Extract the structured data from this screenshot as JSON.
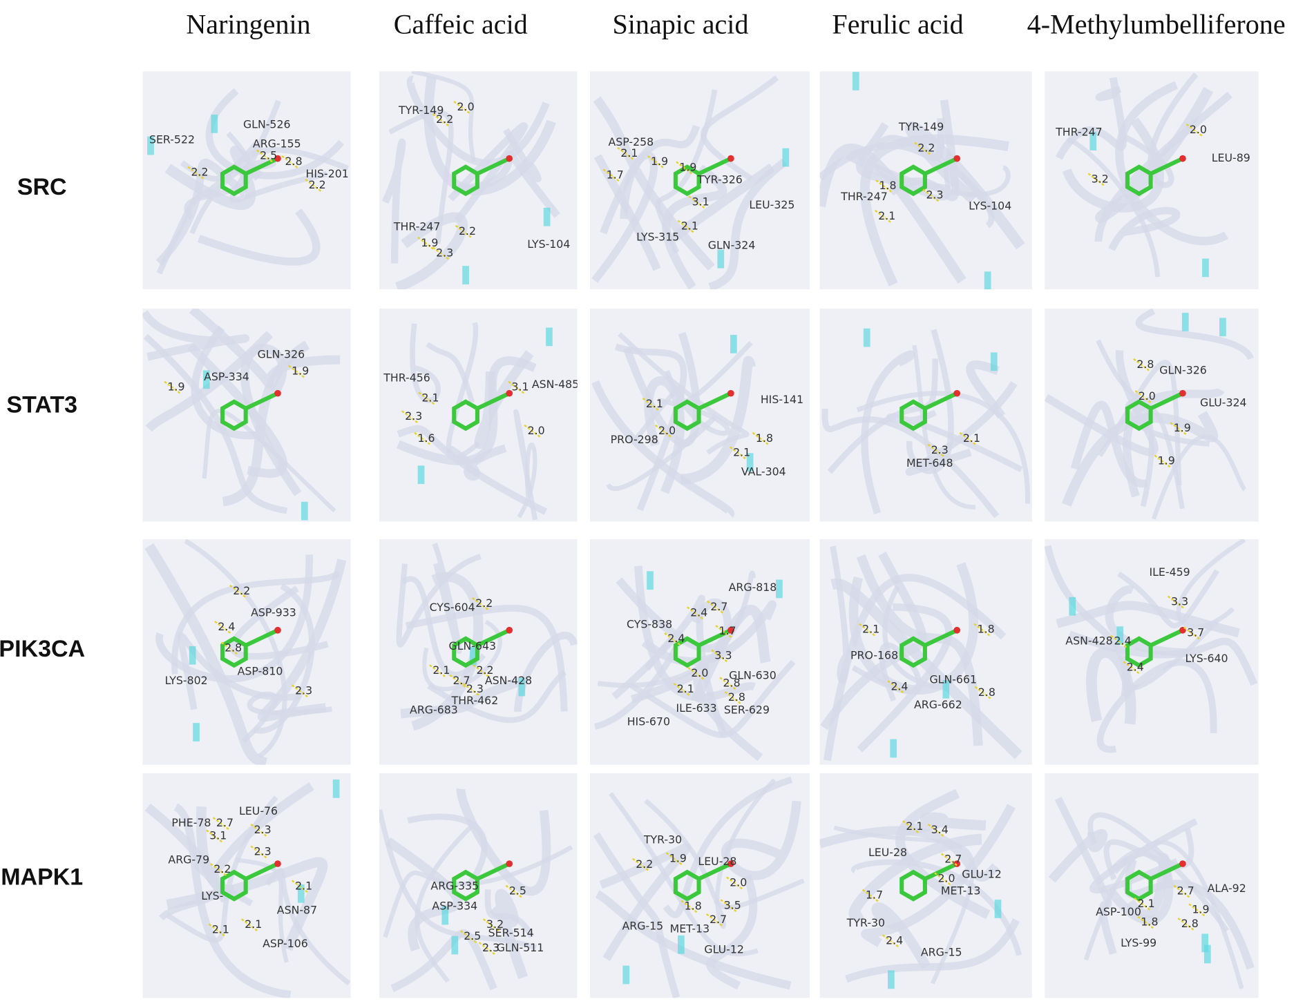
{
  "columns": [
    "Naringenin",
    "Caffeic acid",
    "Sinapic acid",
    "Ferulic acid",
    "4-Methylumbelliferone"
  ],
  "rows": [
    {
      "label": "SRC",
      "panels": [
        {
          "labels": [
            "SER-522",
            "GLN-526",
            "ARG-155",
            "2.5",
            "2.8",
            "HIS-201",
            "2.2",
            "2.2"
          ]
        },
        {
          "labels": [
            "TYR-149",
            "2.0",
            "2.2",
            "THR-247",
            "2.2",
            "1.9",
            "2.3",
            "LYS-104"
          ]
        },
        {
          "labels": [
            "ASP-258",
            "2.1",
            "1.9",
            "1.7",
            "1.9",
            "TYR-326",
            "3.1",
            "LEU-325",
            "2.1",
            "LYS-315",
            "GLN-324"
          ]
        },
        {
          "labels": [
            "TYR-149",
            "2.2",
            "1.8",
            "THR-247",
            "2.3",
            "LYS-104",
            "2.1"
          ]
        },
        {
          "labels": [
            "THR-247",
            "2.0",
            "LEU-89",
            "3.2"
          ]
        }
      ]
    },
    {
      "label": "STAT3",
      "panels": [
        {
          "labels": [
            "GLN-326",
            "ASP-334",
            "1.9",
            "1.9"
          ]
        },
        {
          "labels": [
            "THR-456",
            "ASN-485",
            "3.1",
            "2.1",
            "2.3",
            "1.6",
            "2.0"
          ]
        },
        {
          "labels": [
            "HIS-141",
            "2.1",
            "2.0",
            "PRO-298",
            "1.8",
            "2.1",
            "VAL-304"
          ]
        },
        {
          "labels": [
            "2.1",
            "2.3",
            "MET-648"
          ]
        },
        {
          "labels": [
            "2.8",
            "GLN-326",
            "2.0",
            "GLU-324",
            "1.9",
            "1.9"
          ]
        }
      ]
    },
    {
      "label": "PIK3CA",
      "panels": [
        {
          "labels": [
            "2.2",
            "ASP-933",
            "2.4",
            "2.8",
            "ASP-810",
            "LYS-802",
            "2.3"
          ]
        },
        {
          "labels": [
            "CYS-604",
            "2.2",
            "GLN-643",
            "2.1",
            "2.7",
            "2.2",
            "ASN-428",
            "2.3",
            "THR-462",
            "ARG-683"
          ]
        },
        {
          "labels": [
            "ARG-818",
            "2.4",
            "2.7",
            "CYS-838",
            "1.7",
            "2.4",
            "3.3",
            "2.0",
            "GLN-630",
            "2.1",
            "2.8",
            "2.8",
            "ILE-633",
            "SER-629",
            "HIS-670"
          ]
        },
        {
          "labels": [
            "2.1",
            "1.8",
            "PRO-168",
            "GLN-661",
            "2.4",
            "2.8",
            "ARG-662"
          ]
        },
        {
          "labels": [
            "ILE-459",
            "3.3",
            "ASN-428",
            "2.4",
            "3.7",
            "LYS-640",
            "2.4"
          ]
        }
      ]
    },
    {
      "label": "MAPK1",
      "panels": [
        {
          "labels": [
            "LEU-76",
            "PHE-78",
            "2.7",
            "2.3",
            "3.1",
            "2.3",
            "ARG-79",
            "2.2",
            "LYS-",
            "2.1",
            "ASN-87",
            "2.1",
            "2.1",
            "ASP-106"
          ]
        },
        {
          "labels": [
            "2.5",
            "ARG-335",
            "ASP-334",
            "3.2",
            "2.5",
            "SER-514",
            "2.3",
            "GLN-511"
          ]
        },
        {
          "labels": [
            "TYR-30",
            "1.9",
            "LEU-28",
            "2.2",
            "2.0",
            "1.8",
            "3.5",
            "2.7",
            "ARG-15",
            "MET-13",
            "GLU-12"
          ]
        },
        {
          "labels": [
            "2.1",
            "3.4",
            "LEU-28",
            "2.7",
            "GLU-12",
            "2.0",
            "MET-13",
            "1.7",
            "TYR-30",
            "2.4",
            "ARG-15"
          ]
        },
        {
          "labels": [
            "ALA-92",
            "ASP-100",
            "2.1",
            "2.7",
            "1.9",
            "1.8",
            "2.8",
            "LYS-99"
          ]
        }
      ]
    }
  ]
}
